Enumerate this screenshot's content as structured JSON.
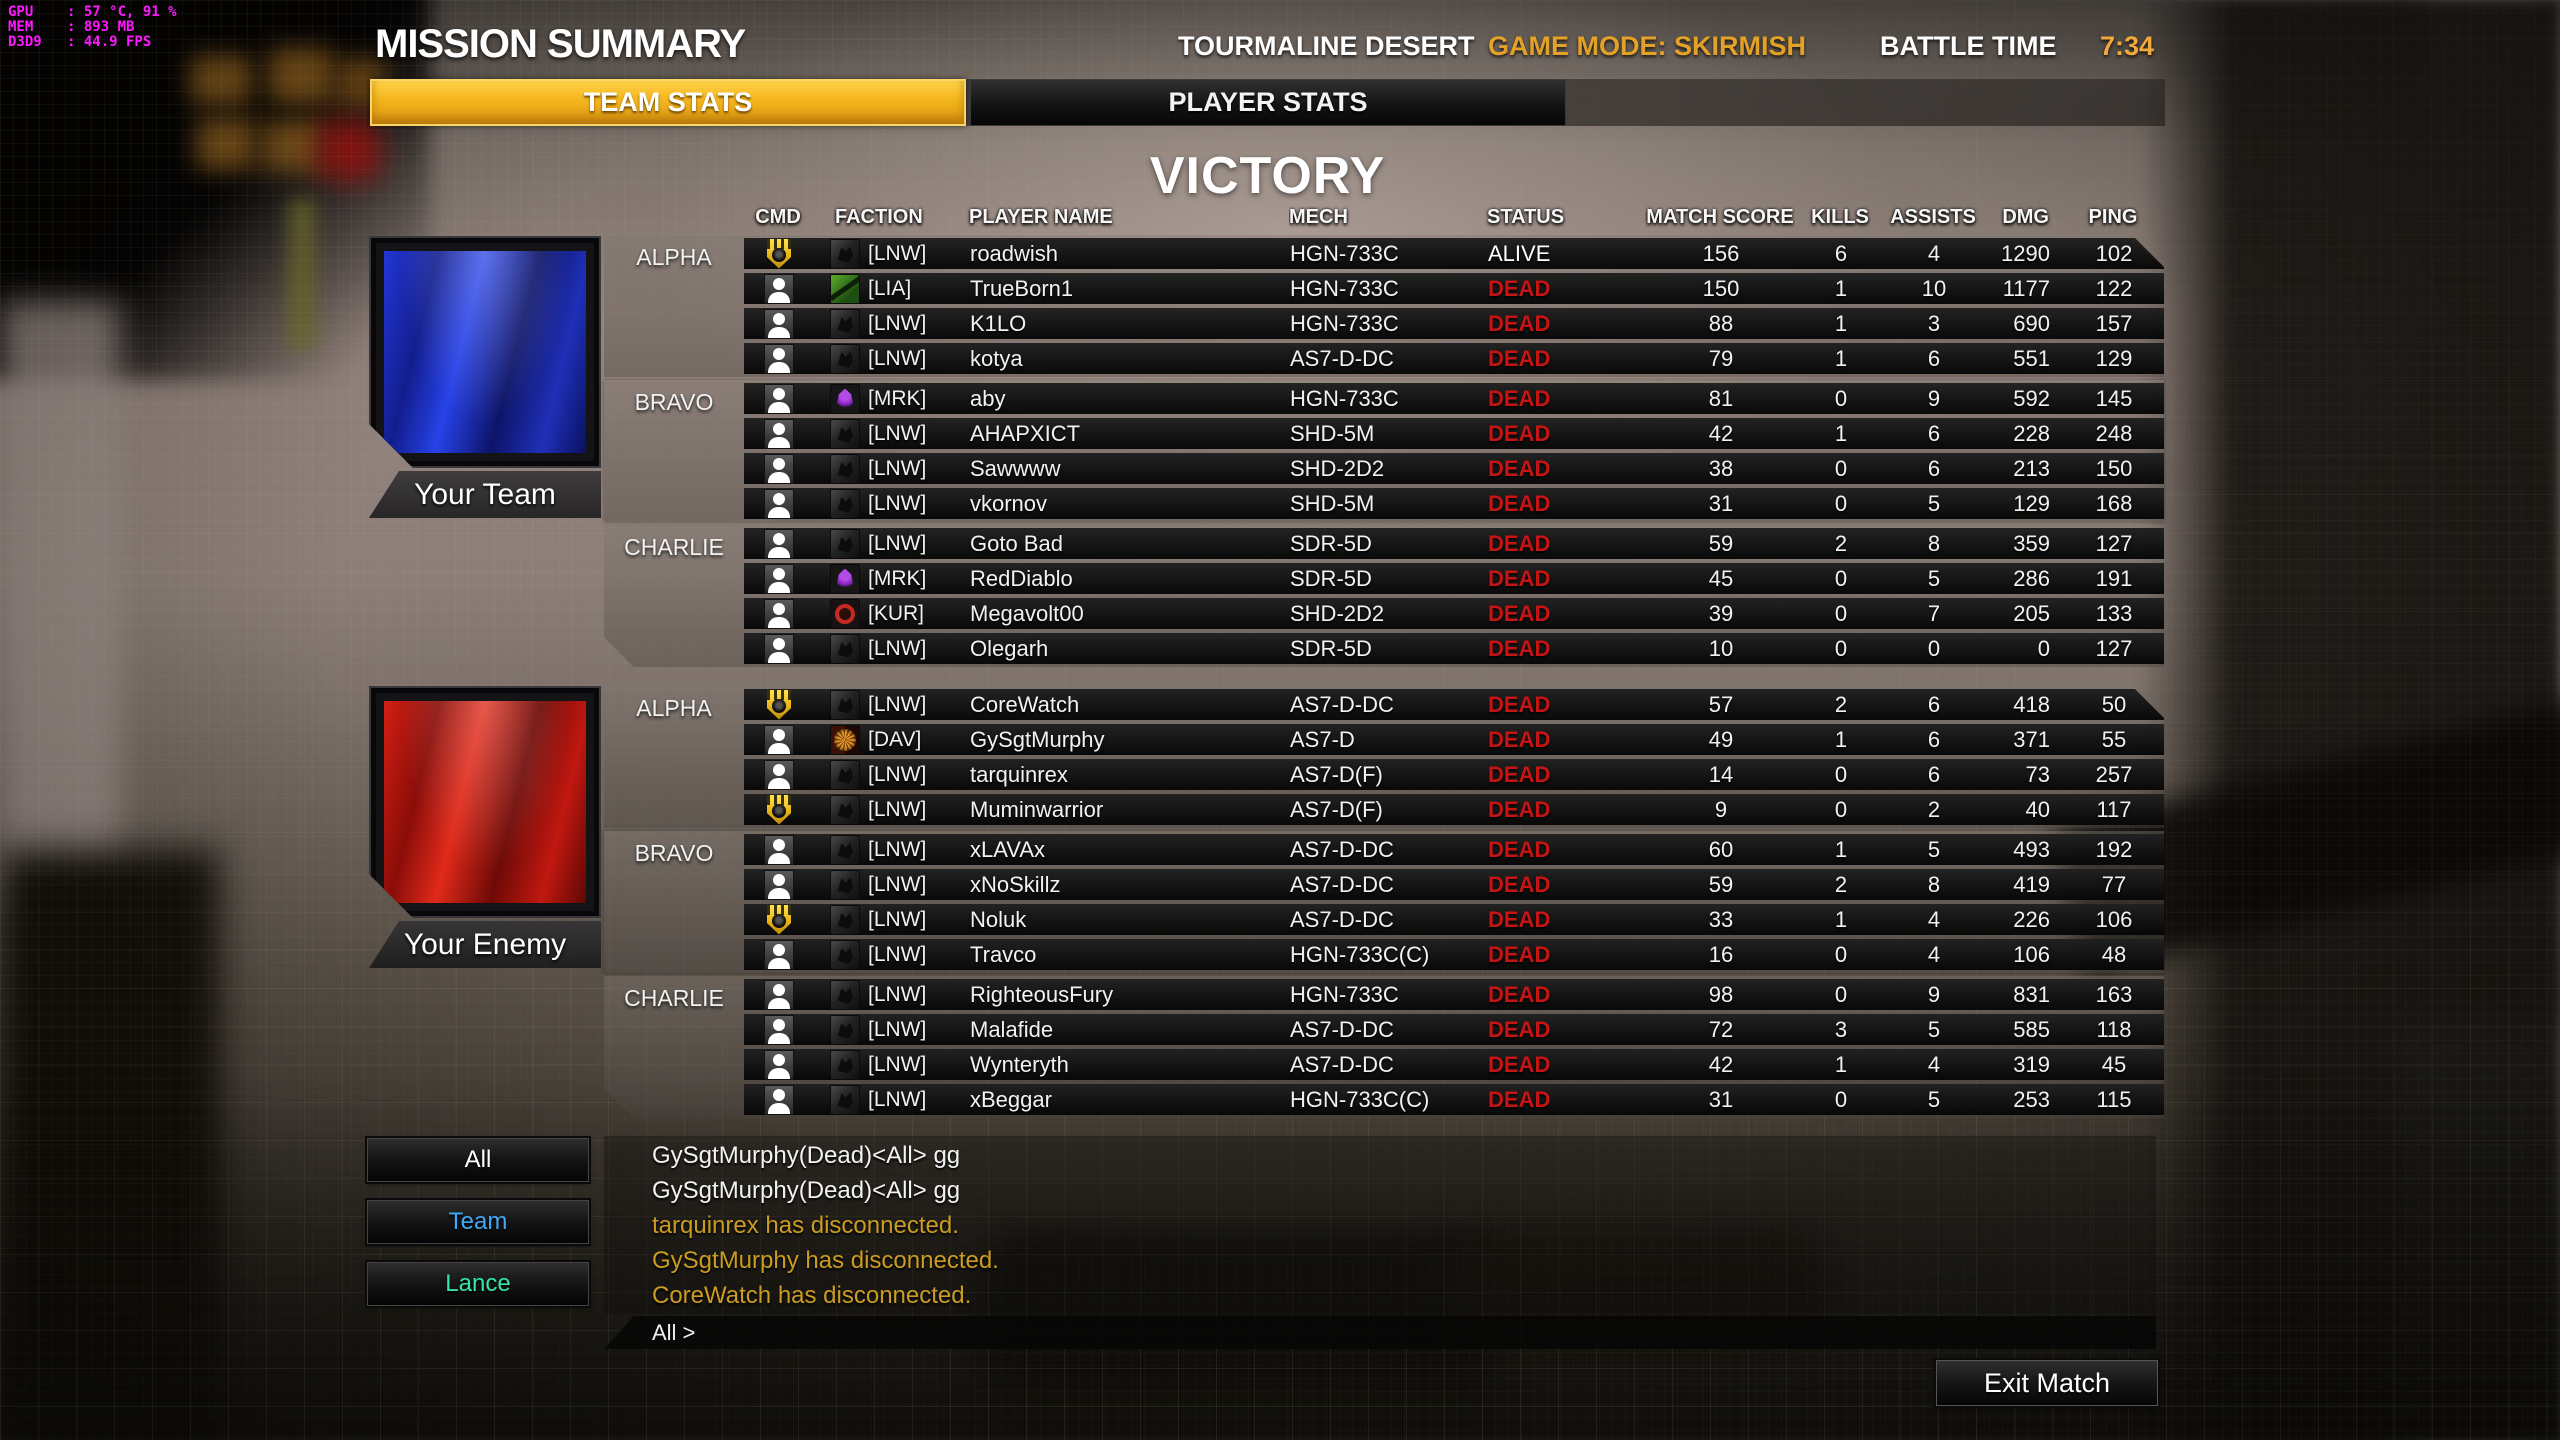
{
  "perf_overlay": {
    "lines": [
      "GPU    : 57 °C, 91 %",
      "MEM    : 893 MB",
      "D3D9   : 44.9 FPS"
    ]
  },
  "header": {
    "title": "MISSION SUMMARY",
    "map": "TOURMALINE DESERT",
    "game_mode": "GAME MODE: SKIRMISH",
    "battle_time_label": "BATTLE TIME",
    "battle_time": "7:34"
  },
  "tabs": [
    {
      "label": "TEAM STATS",
      "active": true
    },
    {
      "label": "PLAYER STATS",
      "active": false
    }
  ],
  "result_banner": "VICTORY",
  "table": {
    "columns": [
      "CMD",
      "FACTION",
      "PLAYER NAME",
      "MECH",
      "STATUS",
      "MATCH SCORE",
      "KILLS",
      "ASSISTS",
      "DMG",
      "PING"
    ]
  },
  "teams": [
    {
      "banner_label": "Your Team",
      "banner_color": "#1b2fd4",
      "lances": [
        {
          "name": "ALPHA",
          "rows": [
            {
              "cmd": "badge",
              "faction": "LNW",
              "tag": "[LNW]",
              "name": "roadwish",
              "mech": "HGN-733C",
              "status": "ALIVE",
              "score": "156",
              "kills": "6",
              "assists": "4",
              "dmg": "1290",
              "ping": "102"
            },
            {
              "cmd": "person",
              "faction": "LIA",
              "tag": "[LIA]",
              "name": "TrueBorn1",
              "mech": "HGN-733C",
              "status": "DEAD",
              "score": "150",
              "kills": "1",
              "assists": "10",
              "dmg": "1177",
              "ping": "122"
            },
            {
              "cmd": "person",
              "faction": "LNW",
              "tag": "[LNW]",
              "name": "K1LO",
              "mech": "HGN-733C",
              "status": "DEAD",
              "score": "88",
              "kills": "1",
              "assists": "3",
              "dmg": "690",
              "ping": "157"
            },
            {
              "cmd": "person",
              "faction": "LNW",
              "tag": "[LNW]",
              "name": "kotya",
              "mech": "AS7-D-DC",
              "status": "DEAD",
              "score": "79",
              "kills": "1",
              "assists": "6",
              "dmg": "551",
              "ping": "129"
            }
          ]
        },
        {
          "name": "BRAVO",
          "rows": [
            {
              "cmd": "person",
              "faction": "MRK",
              "tag": "[MRK]",
              "name": "aby",
              "mech": "HGN-733C",
              "status": "DEAD",
              "score": "81",
              "kills": "0",
              "assists": "9",
              "dmg": "592",
              "ping": "145"
            },
            {
              "cmd": "person",
              "faction": "LNW",
              "tag": "[LNW]",
              "name": "AHAPXICT",
              "mech": "SHD-5M",
              "status": "DEAD",
              "score": "42",
              "kills": "1",
              "assists": "6",
              "dmg": "228",
              "ping": "248"
            },
            {
              "cmd": "person",
              "faction": "LNW",
              "tag": "[LNW]",
              "name": "Sawwww",
              "mech": "SHD-2D2",
              "status": "DEAD",
              "score": "38",
              "kills": "0",
              "assists": "6",
              "dmg": "213",
              "ping": "150"
            },
            {
              "cmd": "person",
              "faction": "LNW",
              "tag": "[LNW]",
              "name": "vkornov",
              "mech": "SHD-5M",
              "status": "DEAD",
              "score": "31",
              "kills": "0",
              "assists": "5",
              "dmg": "129",
              "ping": "168"
            }
          ]
        },
        {
          "name": "CHARLIE",
          "rows": [
            {
              "cmd": "person",
              "faction": "LNW",
              "tag": "[LNW]",
              "name": "Goto Bad",
              "mech": "SDR-5D",
              "status": "DEAD",
              "score": "59",
              "kills": "2",
              "assists": "8",
              "dmg": "359",
              "ping": "127"
            },
            {
              "cmd": "person",
              "faction": "MRK",
              "tag": "[MRK]",
              "name": "RedDiablo",
              "mech": "SDR-5D",
              "status": "DEAD",
              "score": "45",
              "kills": "0",
              "assists": "5",
              "dmg": "286",
              "ping": "191"
            },
            {
              "cmd": "person",
              "faction": "KUR",
              "tag": "[KUR]",
              "name": "Megavolt00",
              "mech": "SHD-2D2",
              "status": "DEAD",
              "score": "39",
              "kills": "0",
              "assists": "7",
              "dmg": "205",
              "ping": "133"
            },
            {
              "cmd": "person",
              "faction": "LNW",
              "tag": "[LNW]",
              "name": "Olegarh",
              "mech": "SDR-5D",
              "status": "DEAD",
              "score": "10",
              "kills": "0",
              "assists": "0",
              "dmg": "0",
              "ping": "127"
            }
          ]
        }
      ]
    },
    {
      "banner_label": "Your Enemy",
      "banner_color": "#c01818",
      "lances": [
        {
          "name": "ALPHA",
          "rows": [
            {
              "cmd": "badge",
              "faction": "LNW",
              "tag": "[LNW]",
              "name": "CoreWatch",
              "mech": "AS7-D-DC",
              "status": "DEAD",
              "score": "57",
              "kills": "2",
              "assists": "6",
              "dmg": "418",
              "ping": "50"
            },
            {
              "cmd": "person",
              "faction": "DAV",
              "tag": "[DAV]",
              "name": "GySgtMurphy",
              "mech": "AS7-D",
              "status": "DEAD",
              "score": "49",
              "kills": "1",
              "assists": "6",
              "dmg": "371",
              "ping": "55"
            },
            {
              "cmd": "person",
              "faction": "LNW",
              "tag": "[LNW]",
              "name": "tarquinrex",
              "mech": "AS7-D(F)",
              "status": "DEAD",
              "score": "14",
              "kills": "0",
              "assists": "6",
              "dmg": "73",
              "ping": "257"
            },
            {
              "cmd": "badge",
              "faction": "LNW",
              "tag": "[LNW]",
              "name": "Muminwarrior",
              "mech": "AS7-D(F)",
              "status": "DEAD",
              "score": "9",
              "kills": "0",
              "assists": "2",
              "dmg": "40",
              "ping": "117"
            }
          ]
        },
        {
          "name": "BRAVO",
          "rows": [
            {
              "cmd": "person",
              "faction": "LNW",
              "tag": "[LNW]",
              "name": "xLAVAx",
              "mech": "AS7-D-DC",
              "status": "DEAD",
              "score": "60",
              "kills": "1",
              "assists": "5",
              "dmg": "493",
              "ping": "192"
            },
            {
              "cmd": "person",
              "faction": "LNW",
              "tag": "[LNW]",
              "name": "xNoSkillz",
              "mech": "AS7-D-DC",
              "status": "DEAD",
              "score": "59",
              "kills": "2",
              "assists": "8",
              "dmg": "419",
              "ping": "77"
            },
            {
              "cmd": "badge",
              "faction": "LNW",
              "tag": "[LNW]",
              "name": "Noluk",
              "mech": "AS7-D-DC",
              "status": "DEAD",
              "score": "33",
              "kills": "1",
              "assists": "4",
              "dmg": "226",
              "ping": "106"
            },
            {
              "cmd": "person",
              "faction": "LNW",
              "tag": "[LNW]",
              "name": "Travco",
              "mech": "HGN-733C(C)",
              "status": "DEAD",
              "score": "16",
              "kills": "0",
              "assists": "4",
              "dmg": "106",
              "ping": "48"
            }
          ]
        },
        {
          "name": "CHARLIE",
          "rows": [
            {
              "cmd": "person",
              "faction": "LNW",
              "tag": "[LNW]",
              "name": "RighteousFury",
              "mech": "HGN-733C",
              "status": "DEAD",
              "score": "98",
              "kills": "0",
              "assists": "9",
              "dmg": "831",
              "ping": "163"
            },
            {
              "cmd": "person",
              "faction": "LNW",
              "tag": "[LNW]",
              "name": "Malafide",
              "mech": "AS7-D-DC",
              "status": "DEAD",
              "score": "72",
              "kills": "3",
              "assists": "5",
              "dmg": "585",
              "ping": "118"
            },
            {
              "cmd": "person",
              "faction": "LNW",
              "tag": "[LNW]",
              "name": "Wynteryth",
              "mech": "AS7-D-DC",
              "status": "DEAD",
              "score": "42",
              "kills": "1",
              "assists": "4",
              "dmg": "319",
              "ping": "45"
            },
            {
              "cmd": "person",
              "faction": "LNW",
              "tag": "[LNW]",
              "name": "xBeggar",
              "mech": "HGN-733C(C)",
              "status": "DEAD",
              "score": "31",
              "kills": "0",
              "assists": "5",
              "dmg": "253",
              "ping": "115"
            }
          ]
        }
      ]
    }
  ],
  "chat": {
    "filters": [
      {
        "label": "All",
        "color": "#ffffff"
      },
      {
        "label": "Team",
        "color": "#3fa9f5"
      },
      {
        "label": "Lance",
        "color": "#35e6a7"
      }
    ],
    "messages": [
      {
        "text": "GySgtMurphy(Dead)<All> gg",
        "type": "all"
      },
      {
        "text": "GySgtMurphy(Dead)<All> gg",
        "type": "all"
      },
      {
        "text": "tarquinrex has disconnected.",
        "type": "system"
      },
      {
        "text": "GySgtMurphy has disconnected.",
        "type": "system"
      },
      {
        "text": "CoreWatch has disconnected.",
        "type": "system"
      }
    ],
    "input_label": "All >"
  },
  "exit_button": "Exit Match",
  "colors": {
    "accent_gold": "#f0b021",
    "dead_red": "#c41414",
    "system_chat_gold": "#cb9c22",
    "team_chat_blue": "#3fa9f5",
    "lance_chat_teal": "#35e6a7",
    "perf_magenta": "#ff18ff"
  }
}
